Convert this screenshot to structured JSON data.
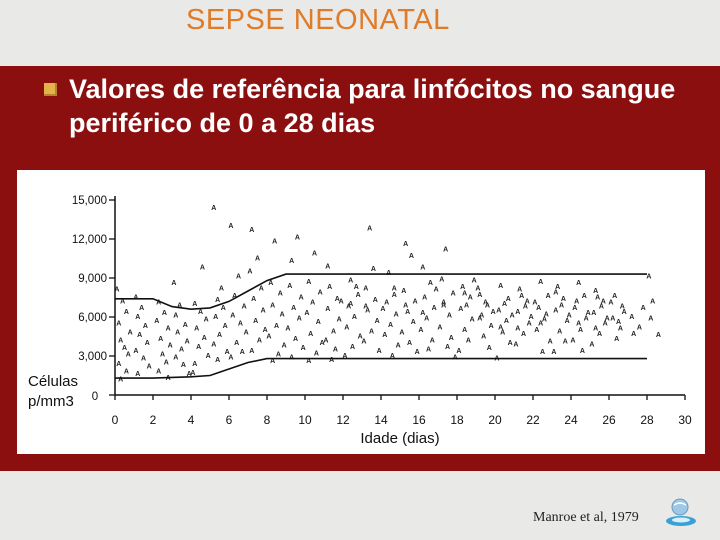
{
  "slide": {
    "title": "SEPSE NEONATAL",
    "bullet": "Valores de referência para linfócitos no sangue periférico de 0 a 28 dias",
    "citation": "Manroe et al, 1979",
    "icons": {
      "bullet": "square-bullet-icon",
      "corner": "globe-logo-icon"
    },
    "colors": {
      "title": "#e07b28",
      "band": "#8c0f10",
      "bullet": "#e3b24a",
      "text": "#ffffff"
    }
  },
  "chart_data": {
    "type": "scatter",
    "title": "",
    "xlabel": "Idade (dias)",
    "ylabel": "Células p/mm3",
    "xlim": [
      0,
      30
    ],
    "ylim": [
      0,
      15000
    ],
    "x_ticks": [
      0,
      2,
      4,
      6,
      8,
      10,
      12,
      14,
      16,
      18,
      20,
      22,
      24,
      26,
      28,
      30
    ],
    "y_ticks": [
      0,
      3000,
      6000,
      9000,
      12000,
      15000
    ],
    "y_tick_labels": [
      "0",
      "3,000",
      "6,000",
      "9,000",
      "12,000",
      "15,000"
    ],
    "marker_label": "A",
    "grid": false,
    "legend": "none",
    "series": [
      {
        "role": "upper-reference-curve",
        "x": [
          0,
          2,
          3,
          4,
          5,
          6,
          7,
          8,
          9,
          10,
          12,
          16,
          20,
          24,
          28
        ],
        "y": [
          7400,
          7400,
          6800,
          6600,
          6700,
          7200,
          8000,
          8800,
          9300,
          9300,
          9300,
          9300,
          9300,
          9300,
          9300
        ]
      },
      {
        "role": "lower-reference-curve",
        "x": [
          0,
          2,
          4,
          5,
          6,
          7,
          8,
          9,
          10,
          12,
          16,
          20,
          24,
          28
        ],
        "y": [
          1300,
          1300,
          1400,
          1500,
          2000,
          2500,
          2800,
          2800,
          2800,
          2800,
          2800,
          2800,
          2800,
          2800
        ]
      },
      {
        "role": "observations",
        "points": [
          [
            0.1,
            8100
          ],
          [
            0.4,
            7200
          ],
          [
            0.6,
            6400
          ],
          [
            0.2,
            5500
          ],
          [
            0.8,
            4800
          ],
          [
            0.3,
            4200
          ],
          [
            0.5,
            3600
          ],
          [
            0.7,
            3100
          ],
          [
            0.2,
            2400
          ],
          [
            0.6,
            1800
          ],
          [
            0.3,
            1200
          ],
          [
            1.1,
            7500
          ],
          [
            1.4,
            6700
          ],
          [
            1.2,
            6000
          ],
          [
            1.6,
            5300
          ],
          [
            1.3,
            4600
          ],
          [
            1.7,
            4000
          ],
          [
            1.1,
            3400
          ],
          [
            1.5,
            2800
          ],
          [
            1.8,
            2200
          ],
          [
            1.2,
            1600
          ],
          [
            2.3,
            7100
          ],
          [
            2.6,
            6300
          ],
          [
            2.2,
            5700
          ],
          [
            2.8,
            5100
          ],
          [
            2.4,
            4300
          ],
          [
            2.9,
            3800
          ],
          [
            2.5,
            3100
          ],
          [
            2.7,
            2500
          ],
          [
            2.3,
            1800
          ],
          [
            2.8,
            1300
          ],
          [
            3.4,
            6900
          ],
          [
            3.2,
            6100
          ],
          [
            3.7,
            5400
          ],
          [
            3.3,
            4800
          ],
          [
            3.8,
            4100
          ],
          [
            3.5,
            3500
          ],
          [
            3.2,
            2900
          ],
          [
            3.6,
            2300
          ],
          [
            3.9,
            1600
          ],
          [
            3.1,
            8600
          ],
          [
            4.2,
            7000
          ],
          [
            4.5,
            6400
          ],
          [
            4.8,
            5800
          ],
          [
            4.3,
            5100
          ],
          [
            4.7,
            4400
          ],
          [
            4.4,
            3700
          ],
          [
            4.9,
            3000
          ],
          [
            4.2,
            2400
          ],
          [
            4.6,
            9800
          ],
          [
            4.1,
            1700
          ],
          [
            5.2,
            14400
          ],
          [
            5.4,
            7300
          ],
          [
            5.7,
            6700
          ],
          [
            5.3,
            6000
          ],
          [
            5.8,
            5300
          ],
          [
            5.5,
            4600
          ],
          [
            5.2,
            3900
          ],
          [
            5.9,
            3300
          ],
          [
            5.6,
            8200
          ],
          [
            5.4,
            2700
          ],
          [
            6.1,
            13000
          ],
          [
            6.5,
            9100
          ],
          [
            6.3,
            7600
          ],
          [
            6.8,
            6800
          ],
          [
            6.2,
            6100
          ],
          [
            6.6,
            5500
          ],
          [
            6.9,
            4800
          ],
          [
            6.4,
            4000
          ],
          [
            6.7,
            3300
          ],
          [
            6.1,
            2900
          ],
          [
            7.2,
            12700
          ],
          [
            7.5,
            10500
          ],
          [
            7.1,
            9500
          ],
          [
            7.7,
            8200
          ],
          [
            7.3,
            7400
          ],
          [
            7.8,
            6500
          ],
          [
            7.4,
            5700
          ],
          [
            7.9,
            5000
          ],
          [
            7.6,
            4200
          ],
          [
            7.2,
            3400
          ],
          [
            8.4,
            11800
          ],
          [
            8.2,
            8600
          ],
          [
            8.7,
            7800
          ],
          [
            8.3,
            6900
          ],
          [
            8.8,
            6200
          ],
          [
            8.5,
            5300
          ],
          [
            8.1,
            4500
          ],
          [
            8.9,
            3800
          ],
          [
            8.6,
            3100
          ],
          [
            8.3,
            2600
          ],
          [
            9.3,
            10300
          ],
          [
            9.6,
            12100
          ],
          [
            9.2,
            8400
          ],
          [
            9.8,
            7500
          ],
          [
            9.4,
            6700
          ],
          [
            9.7,
            5900
          ],
          [
            9.1,
            5100
          ],
          [
            9.5,
            4300
          ],
          [
            9.9,
            3600
          ],
          [
            9.3,
            2900
          ],
          [
            10.5,
            10900
          ],
          [
            10.2,
            8700
          ],
          [
            10.8,
            7900
          ],
          [
            10.4,
            7100
          ],
          [
            10.1,
            6300
          ],
          [
            10.7,
            5600
          ],
          [
            10.3,
            4700
          ],
          [
            10.9,
            4000
          ],
          [
            10.6,
            3200
          ],
          [
            10.2,
            2600
          ],
          [
            11.3,
            8300
          ],
          [
            11.7,
            7400
          ],
          [
            11.2,
            6600
          ],
          [
            11.8,
            5800
          ],
          [
            11.5,
            4900
          ],
          [
            11.1,
            4200
          ],
          [
            11.6,
            3500
          ],
          [
            11.4,
            2700
          ],
          [
            11.9,
            7200
          ],
          [
            11.2,
            9900
          ],
          [
            12.4,
            8800
          ],
          [
            12.8,
            7700
          ],
          [
            12.3,
            6800
          ],
          [
            12.6,
            6000
          ],
          [
            12.2,
            5200
          ],
          [
            12.9,
            4500
          ],
          [
            12.5,
            3700
          ],
          [
            12.1,
            3000
          ],
          [
            12.7,
            8300
          ],
          [
            12.4,
            7000
          ],
          [
            13.4,
            12800
          ],
          [
            13.2,
            8200
          ],
          [
            13.7,
            7300
          ],
          [
            13.3,
            6500
          ],
          [
            13.8,
            5700
          ],
          [
            13.5,
            4900
          ],
          [
            13.1,
            4100
          ],
          [
            13.9,
            3400
          ],
          [
            13.6,
            9700
          ],
          [
            13.2,
            6800
          ],
          [
            14.4,
            9400
          ],
          [
            14.7,
            8200
          ],
          [
            14.3,
            7100
          ],
          [
            14.8,
            6200
          ],
          [
            14.5,
            5400
          ],
          [
            14.2,
            4600
          ],
          [
            14.9,
            3800
          ],
          [
            14.6,
            3000
          ],
          [
            14.1,
            6600
          ],
          [
            14.7,
            7700
          ],
          [
            15.3,
            11600
          ],
          [
            15.6,
            10700
          ],
          [
            15.2,
            8000
          ],
          [
            15.8,
            7200
          ],
          [
            15.4,
            6400
          ],
          [
            15.7,
            5600
          ],
          [
            15.1,
            4800
          ],
          [
            15.5,
            4000
          ],
          [
            15.9,
            3300
          ],
          [
            15.3,
            6900
          ],
          [
            16.2,
            9800
          ],
          [
            16.6,
            8600
          ],
          [
            16.3,
            7500
          ],
          [
            16.8,
            6700
          ],
          [
            16.4,
            5900
          ],
          [
            16.1,
            5000
          ],
          [
            16.7,
            4200
          ],
          [
            16.5,
            3500
          ],
          [
            16.9,
            8100
          ],
          [
            16.2,
            6300
          ],
          [
            17.4,
            11200
          ],
          [
            17.2,
            8900
          ],
          [
            17.8,
            7800
          ],
          [
            17.3,
            6900
          ],
          [
            17.6,
            6100
          ],
          [
            17.1,
            5200
          ],
          [
            17.7,
            4400
          ],
          [
            17.5,
            3700
          ],
          [
            17.9,
            2900
          ],
          [
            17.3,
            7100
          ],
          [
            18.3,
            8300
          ],
          [
            18.7,
            7500
          ],
          [
            18.2,
            6600
          ],
          [
            18.8,
            5800
          ],
          [
            18.4,
            5000
          ],
          [
            18.6,
            4200
          ],
          [
            18.1,
            3400
          ],
          [
            18.9,
            8800
          ],
          [
            18.5,
            6900
          ],
          [
            18.4,
            7800
          ],
          [
            19.2,
            7700
          ],
          [
            19.6,
            6900
          ],
          [
            19.3,
            6100
          ],
          [
            19.8,
            5300
          ],
          [
            19.4,
            4500
          ],
          [
            19.7,
            3600
          ],
          [
            19.1,
            8200
          ],
          [
            19.5,
            7100
          ],
          [
            19.9,
            6400
          ],
          [
            19.2,
            5900
          ],
          [
            20.3,
            8400
          ],
          [
            20.7,
            7400
          ],
          [
            20.2,
            6500
          ],
          [
            20.6,
            5700
          ],
          [
            20.4,
            4800
          ],
          [
            20.8,
            4000
          ],
          [
            20.1,
            2800
          ],
          [
            20.5,
            7000
          ],
          [
            20.9,
            6100
          ],
          [
            20.3,
            5200
          ],
          [
            21.3,
            8100
          ],
          [
            21.7,
            7200
          ],
          [
            21.2,
            6400
          ],
          [
            21.8,
            5500
          ],
          [
            21.5,
            4700
          ],
          [
            21.1,
            3900
          ],
          [
            21.6,
            6800
          ],
          [
            21.4,
            7600
          ],
          [
            21.9,
            6000
          ],
          [
            21.2,
            5100
          ],
          [
            22.4,
            8700
          ],
          [
            22.8,
            7600
          ],
          [
            22.3,
            6700
          ],
          [
            22.6,
            5800
          ],
          [
            22.2,
            5000
          ],
          [
            22.9,
            4100
          ],
          [
            22.5,
            3300
          ],
          [
            22.1,
            7100
          ],
          [
            22.7,
            6200
          ],
          [
            22.4,
            5500
          ],
          [
            23.3,
            8300
          ],
          [
            23.6,
            7400
          ],
          [
            23.2,
            6500
          ],
          [
            23.8,
            5700
          ],
          [
            23.4,
            4900
          ],
          [
            23.7,
            4100
          ],
          [
            23.1,
            3300
          ],
          [
            23.5,
            6900
          ],
          [
            23.9,
            6100
          ],
          [
            23.2,
            7900
          ],
          [
            24.4,
            8600
          ],
          [
            24.7,
            7600
          ],
          [
            24.2,
            6700
          ],
          [
            24.8,
            5900
          ],
          [
            24.5,
            5000
          ],
          [
            24.1,
            4200
          ],
          [
            24.6,
            3400
          ],
          [
            24.3,
            7200
          ],
          [
            24.9,
            6300
          ],
          [
            24.4,
            5500
          ],
          [
            25.3,
            8000
          ],
          [
            25.7,
            7200
          ],
          [
            25.2,
            6300
          ],
          [
            25.8,
            5500
          ],
          [
            25.5,
            4700
          ],
          [
            25.1,
            3900
          ],
          [
            25.6,
            6800
          ],
          [
            25.4,
            7500
          ],
          [
            25.9,
            5900
          ],
          [
            25.3,
            5100
          ],
          [
            26.3,
            7600
          ],
          [
            26.7,
            6800
          ],
          [
            26.2,
            5900
          ],
          [
            26.6,
            5100
          ],
          [
            26.4,
            4300
          ],
          [
            26.8,
            6400
          ],
          [
            26.1,
            7100
          ],
          [
            26.5,
            5600
          ],
          [
            27.2,
            6000
          ],
          [
            27.6,
            5200
          ],
          [
            27.3,
            4700
          ],
          [
            27.8,
            6700
          ],
          [
            28.1,
            9100
          ],
          [
            28.3,
            7200
          ],
          [
            28.6,
            4600
          ],
          [
            28.2,
            5900
          ]
        ]
      }
    ]
  }
}
